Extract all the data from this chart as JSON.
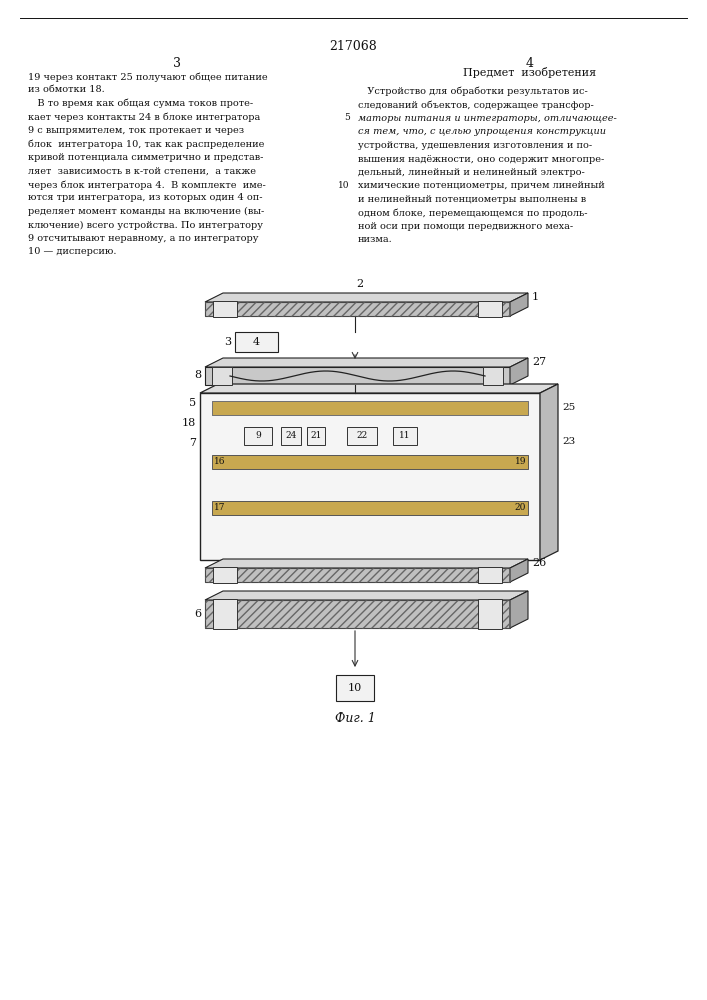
{
  "patent_number": "217068",
  "page_left": "3",
  "page_right": "4",
  "left_text_col1": [
    "19 через контакт 25 получают общее питание",
    "из обмотки 18.",
    "   В то время как общая сумма токов проте-",
    "кает через контакты 24 в блоке интегратора",
    "9 с выпрямителем, ток протекает и через",
    "блок  интегратора 10, так как распределение",
    "кривой потенциала симметрично и представ-",
    "ляет  зависимость в к-той степени,  а также",
    "через блок интегратора 4.  В комплекте  име-",
    "ются три интегратора, из которых один 4 оп-",
    "ределяет момент команды на включение (вы-",
    "ключение) всего устройства. По интегратору",
    "9 отсчитывают неравному, а по интегратору",
    "10 — дисперсию."
  ],
  "right_heading": "Предмет  изобретения",
  "right_text_col2": [
    "   Устройство для обработки результатов ис-",
    "следований объектов, содержащее трансфор-",
    "маторы питания и интеграторы, отличающее-",
    "ся тем, что, с целью упрощения конструкции",
    "устройства, удешевления изготовления и по-",
    "вышения надёжности, оно содержит многопре-",
    "дельный, линейный и нелинейный электро-",
    "химические потенциометры, причем линейный",
    "и нелинейный потенциометры выполнены в",
    "одном блоке, перемещающемся по продоль-",
    "ной оси при помощи передвижного меха-",
    "низма."
  ],
  "fig_label": "Фиг. 1",
  "bg_color": "#ffffff",
  "text_color": "#111111",
  "line_color": "#111111"
}
